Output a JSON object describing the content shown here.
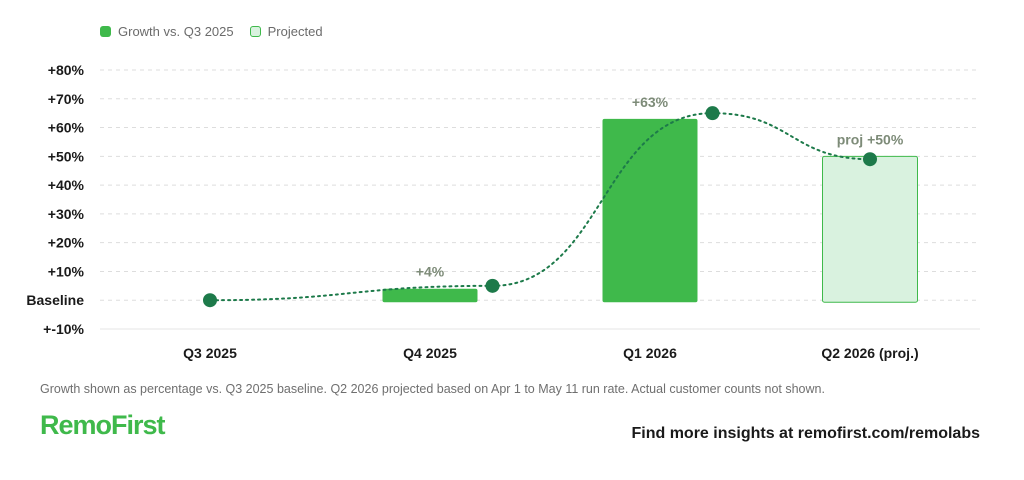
{
  "legend": {
    "actual_label": "Growth vs. Q3 2025",
    "projected_label": "Projected"
  },
  "chart_data": {
    "type": "bar",
    "categories": [
      "Q3 2025",
      "Q4 2025",
      "Q1 2026",
      "Q2 2026 (proj.)"
    ],
    "values": [
      0,
      4,
      63,
      50
    ],
    "projected": [
      false,
      false,
      false,
      true
    ],
    "data_labels": [
      "",
      "+4%",
      "+63%",
      "proj +50%"
    ],
    "y_tick_labels": [
      "+-10%",
      "Baseline",
      "+10%",
      "+20%",
      "+30%",
      "+40%",
      "+50%",
      "+60%",
      "+70%",
      "+80%"
    ],
    "y_tick_values": [
      -10,
      0,
      10,
      20,
      30,
      40,
      50,
      60,
      70,
      80
    ],
    "ylim": [
      -10,
      80
    ],
    "trend_line": {
      "style": "dotted",
      "points": [
        0,
        5,
        65,
        49
      ]
    },
    "grid": true,
    "colors": {
      "actual": "#3fb94b",
      "projected_fill": "#d9f2df",
      "projected_stroke": "#3fb94b",
      "trend": "#1d7a4a",
      "grid": "#dddddd"
    }
  },
  "footnote": "Growth shown as percentage vs. Q3 2025 baseline. Q2 2026 projected based on Apr 1 to May 11 run rate. Actual customer counts not shown.",
  "brand": {
    "logo_text": "RemoFirst",
    "cta": "Find more insights at remofirst.com/remolabs"
  }
}
